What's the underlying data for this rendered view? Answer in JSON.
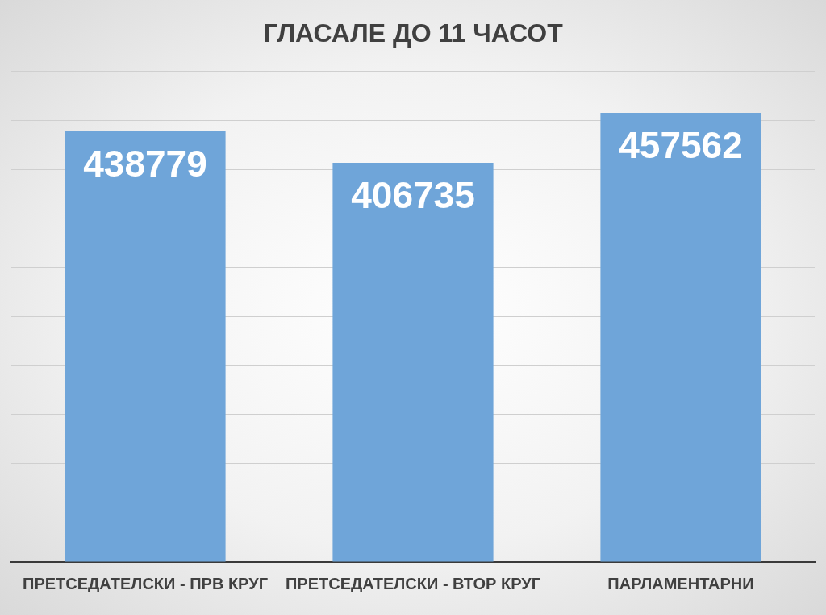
{
  "chart_data": {
    "type": "bar",
    "title": "ГЛАСАЛЕ ДО 11 ЧАСОТ",
    "categories": [
      "ПРЕТСЕДАТЕЛСКИ - ПРВ КРУГ",
      "ПРЕТСЕДАТЕЛСКИ - ВТОР КРУГ",
      "ПАРЛАМЕНТАРНИ"
    ],
    "values": [
      438779,
      406735,
      457562
    ],
    "color": "#6fa5d9",
    "ylim": [
      0,
      500000
    ],
    "yticks": [
      {
        "value": 0,
        "label": null
      },
      {
        "value": 50000,
        "label": null
      },
      {
        "value": 100000,
        "label": null
      },
      {
        "value": 150000,
        "label": null
      },
      {
        "value": 200000,
        "label": null
      },
      {
        "value": 250000,
        "label": null
      },
      {
        "value": 300000,
        "label": null
      },
      {
        "value": 350000,
        "label": null
      },
      {
        "value": 400000,
        "label": null
      },
      {
        "value": 450000,
        "label": null
      },
      {
        "value": 500000,
        "label": null
      }
    ],
    "grid": "y",
    "tick_labels": "x",
    "data_labels": true
  }
}
